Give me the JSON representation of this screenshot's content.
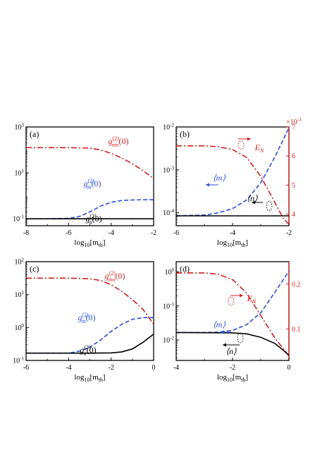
{
  "colors": {
    "black": "#000000",
    "blue": "#2a4fd6",
    "red": "#d21f1f"
  },
  "chart_data": [
    {
      "panel": "(a)",
      "type": "line",
      "scale_y": "log",
      "xlim": [
        -8,
        -2
      ],
      "ylim_log10": [
        -1.3,
        3
      ],
      "xticks": [
        "-8",
        "-6",
        "-4",
        "-2"
      ],
      "yticks": [
        {
          "exp": "-1",
          "label": "10",
          "sup": "-1"
        },
        {
          "exp": "1",
          "label": "10",
          "sup": "1"
        },
        {
          "exp": "3",
          "label": "10",
          "sup": "3"
        }
      ],
      "xlabel": {
        "base": "log",
        "sub": "10",
        "text": "[m",
        "tsub": "th",
        "end": "]"
      },
      "series": [
        {
          "name": "g_mn(0)",
          "style": "dashdot",
          "color": "red",
          "x": [
            -8,
            -6,
            -5,
            -4.5,
            -4,
            -3.5,
            -3,
            -2.5,
            -2
          ],
          "log10y": [
            2.1,
            2.1,
            2.08,
            2.0,
            1.85,
            1.65,
            1.4,
            1.1,
            0.75
          ]
        },
        {
          "name": "g_m(0)",
          "style": "dashed",
          "color": "blue",
          "x": [
            -8,
            -7,
            -6,
            -5.5,
            -5,
            -4.5,
            -4,
            -3.5,
            -3,
            -2.5,
            -2
          ],
          "log10y": [
            -1.0,
            -1.0,
            -0.98,
            -0.9,
            -0.7,
            -0.45,
            -0.28,
            -0.2,
            -0.18,
            -0.17,
            -0.17
          ]
        },
        {
          "name": "g_n(0)",
          "style": "solid",
          "color": "black",
          "x": [
            -8,
            -2
          ],
          "log10y": [
            -1.0,
            -1.0
          ]
        }
      ],
      "labels": [
        {
          "base": "g",
          "sub": "mn",
          "sup": "(2)",
          "tail": "(0)",
          "color": "red"
        },
        {
          "base": "g",
          "sub": "m",
          "sup": "(2)",
          "tail": "(0)",
          "color": "blue"
        },
        {
          "base": "g",
          "sub": "n",
          "sup": "(2)",
          "tail": "(0)",
          "color": "black"
        }
      ]
    },
    {
      "panel": "(b)",
      "type": "line",
      "scale_y": "log",
      "xlim": [
        -6,
        -2
      ],
      "ylim_log10": [
        -4.3,
        -2
      ],
      "ylim_right": [
        3.6,
        7
      ],
      "right_multiplier": {
        "base": "×10",
        "sup": "-3"
      },
      "xticks": [
        "-6",
        "-4",
        "-2"
      ],
      "yticks": [
        {
          "exp": "-4",
          "label": "10",
          "sup": "-4"
        },
        {
          "exp": "-3",
          "label": "10",
          "sup": "-3"
        },
        {
          "exp": "-2",
          "label": "10",
          "sup": "-2"
        }
      ],
      "yticks_right": [
        "4",
        "5",
        "6",
        "7"
      ],
      "xlabel": {
        "base": "log",
        "sub": "10",
        "text": "[m",
        "tsub": "th",
        "end": "]"
      },
      "series": [
        {
          "name": "E_N",
          "style": "dashdot",
          "color": "red",
          "axis": "right",
          "x": [
            -6,
            -5,
            -4.5,
            -4,
            -3.5,
            -3,
            -2.5,
            -2.2,
            -2
          ],
          "y": [
            6.35,
            6.35,
            6.32,
            6.22,
            5.95,
            5.3,
            4.4,
            3.85,
            3.65
          ]
        },
        {
          "name": "m",
          "style": "dashed",
          "color": "blue",
          "x": [
            -6,
            -5,
            -4.5,
            -4,
            -3.5,
            -3,
            -2.5,
            -2
          ],
          "log10y": [
            -4.07,
            -4.05,
            -4.0,
            -3.9,
            -3.7,
            -3.3,
            -2.7,
            -2.02
          ]
        },
        {
          "name": "n",
          "style": "solid",
          "color": "black",
          "x": [
            -6,
            -2
          ],
          "log10y": [
            -4.07,
            -4.07
          ]
        }
      ],
      "labels": [
        {
          "text": "E",
          "sub": "N",
          "color": "red"
        },
        {
          "text": "⟨m⟩",
          "color": "blue"
        },
        {
          "text": "⟨n⟩",
          "color": "black"
        }
      ]
    },
    {
      "panel": "(c)",
      "type": "line",
      "scale_y": "log",
      "xlim": [
        -6,
        0
      ],
      "ylim_log10": [
        -1,
        2
      ],
      "xticks": [
        "-6",
        "-4",
        "-2",
        "0"
      ],
      "yticks": [
        {
          "exp": "-1",
          "label": "10",
          "sup": "-1"
        },
        {
          "exp": "0",
          "label": "10",
          "sup": "0"
        },
        {
          "exp": "1",
          "label": "10",
          "sup": "1"
        },
        {
          "exp": "2",
          "label": "10",
          "sup": "2"
        }
      ],
      "xlabel": {
        "base": "log",
        "sub": "10",
        "text": "[m",
        "tsub": "th",
        "end": "]"
      },
      "series": [
        {
          "name": "g_mn(0)",
          "style": "dashdot",
          "color": "red",
          "x": [
            -6,
            -4,
            -3,
            -2.5,
            -2,
            -1.5,
            -1,
            -0.5,
            0
          ],
          "log10y": [
            1.5,
            1.5,
            1.48,
            1.43,
            1.3,
            1.1,
            0.85,
            0.55,
            0.1
          ]
        },
        {
          "name": "g_m(0)",
          "style": "dashed",
          "color": "blue",
          "x": [
            -6,
            -4,
            -3.5,
            -3,
            -2.5,
            -2,
            -1.5,
            -1,
            -0.5,
            0
          ],
          "log10y": [
            -0.78,
            -0.78,
            -0.72,
            -0.6,
            -0.38,
            -0.12,
            0.1,
            0.25,
            0.3,
            0.3
          ]
        },
        {
          "name": "g_n(0)",
          "style": "solid",
          "color": "black",
          "x": [
            -6,
            -3,
            -2,
            -1.5,
            -1,
            -0.5,
            0
          ],
          "log10y": [
            -0.78,
            -0.78,
            -0.77,
            -0.74,
            -0.65,
            -0.45,
            -0.2
          ]
        }
      ],
      "labels": [
        {
          "base": "g",
          "sub": "mn",
          "sup": "(2)",
          "tail": "(0)",
          "color": "red"
        },
        {
          "base": "g",
          "sub": "m",
          "sup": "(2)",
          "tail": "(0)",
          "color": "blue"
        },
        {
          "base": "g",
          "sub": "n",
          "sup": "(2)",
          "tail": "(0)",
          "color": "black"
        }
      ]
    },
    {
      "panel": "(d)",
      "type": "line",
      "scale_y": "log",
      "xlim": [
        -4,
        0
      ],
      "ylim_log10": [
        -2.6,
        0.3
      ],
      "ylim_right": [
        0.03,
        0.25
      ],
      "xticks": [
        "-4",
        "-2",
        "0"
      ],
      "yticks": [
        {
          "exp": "-2",
          "label": "10",
          "sup": "-2"
        },
        {
          "exp": "-1",
          "label": "10",
          "sup": "-1"
        },
        {
          "exp": "0",
          "label": "10",
          "sup": "0"
        }
      ],
      "yticks_right": [
        "0.1",
        "0.2"
      ],
      "xlabel": {
        "base": "log",
        "sub": "10",
        "text": "[m",
        "tsub": "th",
        "end": "]"
      },
      "series": [
        {
          "name": "E_N",
          "style": "dashdot",
          "color": "red",
          "axis": "right",
          "x": [
            -4,
            -3,
            -2.5,
            -2,
            -1.5,
            -1,
            -0.5,
            0
          ],
          "y": [
            0.225,
            0.225,
            0.222,
            0.21,
            0.18,
            0.13,
            0.08,
            0.04
          ]
        },
        {
          "name": "m",
          "style": "dashed",
          "color": "blue",
          "x": [
            -4,
            -3,
            -2.5,
            -2,
            -1.5,
            -1,
            -0.5,
            0
          ],
          "log10y": [
            -1.78,
            -1.78,
            -1.77,
            -1.72,
            -1.55,
            -1.2,
            -0.6,
            0.02
          ]
        },
        {
          "name": "n",
          "style": "solid",
          "color": "black",
          "x": [
            -4,
            -2,
            -1.5,
            -1,
            -0.5,
            -0.2,
            0
          ],
          "log10y": [
            -1.78,
            -1.79,
            -1.82,
            -1.92,
            -2.1,
            -2.3,
            -2.45
          ]
        }
      ],
      "labels": [
        {
          "text": "E",
          "sub": "N",
          "color": "red"
        },
        {
          "text": "⟨m⟩",
          "color": "blue"
        },
        {
          "text": "⟨n⟩",
          "color": "black"
        }
      ]
    }
  ]
}
